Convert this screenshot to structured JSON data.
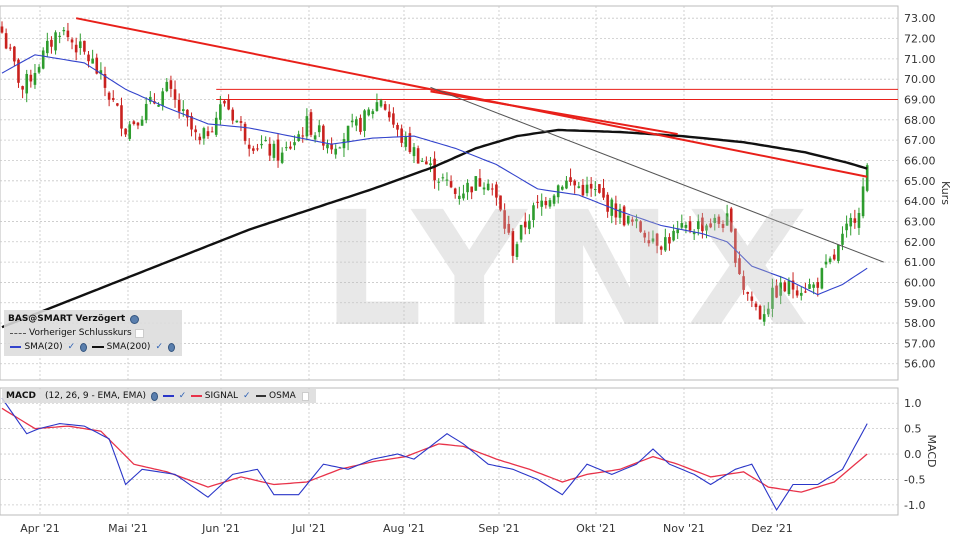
{
  "watermark": "LYNX",
  "price_legend": {
    "title": "BAS@SMART Verzögert",
    "prev_close": "Vorheriger Schlusskurs",
    "sma20": "SMA(20)",
    "sma200": "SMA(200)"
  },
  "macd_legend": {
    "title": "MACD",
    "params": "(12, 26, 9 - EMA, EMA)",
    "signal": "SIGNAL",
    "osma": "OSMA"
  },
  "colors": {
    "candle_up": "#2e9c2e",
    "candle_down": "#c9211e",
    "sma20": "#3344cc",
    "sma200": "#111111",
    "trendline": "#e8201a",
    "macd": "#2a36c8",
    "signal": "#e8334a",
    "grid": "#c8c8c8"
  },
  "chart_data": [
    {
      "type": "candlestick",
      "ylabel": "Kurs",
      "ylim": [
        55.2,
        73.6
      ],
      "yticks": [
        "73.00",
        "72.00",
        "71.00",
        "70.00",
        "69.00",
        "68.00",
        "67.00",
        "66.00",
        "65.00",
        "64.00",
        "63.00",
        "62.00",
        "61.00",
        "60.00",
        "59.00",
        "58.00",
        "57.00",
        "56.00"
      ],
      "x_months": [
        "Apr '21",
        "Mai '21",
        "Jun '21",
        "Jul '21",
        "Aug '21",
        "Sep '21",
        "Okt '21",
        "Nov '21",
        "Dez '21"
      ],
      "close_anchors": [
        [
          0,
          72.3
        ],
        [
          5,
          69.5
        ],
        [
          14,
          72.5
        ],
        [
          22,
          70.8
        ],
        [
          30,
          67.6
        ],
        [
          40,
          69.5
        ],
        [
          48,
          66.8
        ],
        [
          54,
          68.9
        ],
        [
          60,
          67.0
        ],
        [
          68,
          66.2
        ],
        [
          74,
          67.8
        ],
        [
          80,
          66.8
        ],
        [
          87,
          67.8
        ],
        [
          92,
          69.1
        ],
        [
          96,
          67.3
        ],
        [
          104,
          65.6
        ],
        [
          110,
          64.4
        ],
        [
          118,
          65.2
        ],
        [
          124,
          61.6
        ],
        [
          128,
          63.3
        ],
        [
          136,
          65.0
        ],
        [
          144,
          64.4
        ],
        [
          152,
          63.0
        ],
        [
          160,
          62.0
        ],
        [
          168,
          62.8
        ],
        [
          176,
          63.0
        ],
        [
          180,
          59.8
        ],
        [
          184,
          58.4
        ],
        [
          188,
          59.6
        ],
        [
          192,
          59.8
        ],
        [
          197,
          59.8
        ],
        [
          202,
          61.2
        ],
        [
          208,
          63.8
        ],
        [
          210,
          65.4
        ]
      ],
      "sma20_anchors": [
        [
          0,
          70.3
        ],
        [
          8,
          71.2
        ],
        [
          20,
          70.8
        ],
        [
          30,
          69.5
        ],
        [
          40,
          68.6
        ],
        [
          50,
          67.8
        ],
        [
          60,
          67.6
        ],
        [
          70,
          67.2
        ],
        [
          80,
          66.8
        ],
        [
          90,
          67.1
        ],
        [
          100,
          67.2
        ],
        [
          110,
          66.6
        ],
        [
          120,
          65.8
        ],
        [
          130,
          64.6
        ],
        [
          140,
          64.3
        ],
        [
          150,
          63.5
        ],
        [
          160,
          62.8
        ],
        [
          170,
          62.4
        ],
        [
          176,
          62.0
        ],
        [
          182,
          60.8
        ],
        [
          190,
          60.2
        ],
        [
          198,
          59.4
        ],
        [
          204,
          59.9
        ],
        [
          210,
          60.7
        ]
      ],
      "sma200_anchors": [
        [
          0,
          57.8
        ],
        [
          15,
          59.0
        ],
        [
          30,
          60.2
        ],
        [
          45,
          61.4
        ],
        [
          60,
          62.6
        ],
        [
          75,
          63.6
        ],
        [
          90,
          64.6
        ],
        [
          105,
          65.7
        ],
        [
          115,
          66.6
        ],
        [
          125,
          67.2
        ],
        [
          135,
          67.5
        ],
        [
          150,
          67.4
        ],
        [
          165,
          67.2
        ],
        [
          180,
          66.9
        ],
        [
          195,
          66.4
        ],
        [
          205,
          65.9
        ],
        [
          210,
          65.6
        ]
      ],
      "resistance_levels": [
        69.5,
        69.0
      ],
      "trendlines": [
        {
          "color": "red",
          "from": [
            18,
            73.0
          ],
          "to": [
            210,
            65.2
          ]
        },
        {
          "color": "red",
          "from": [
            104,
            69.4
          ],
          "to": [
            164,
            67.3
          ]
        },
        {
          "color": "grey",
          "from": [
            104,
            69.6
          ],
          "to": [
            214,
            61.0
          ]
        }
      ]
    },
    {
      "type": "line",
      "name": "MACD",
      "ylabel": "MACD",
      "ylim": [
        -1.2,
        1.3
      ],
      "yticks": [
        "1.0",
        "0.5",
        "0.0",
        "-0.5",
        "-1.0"
      ],
      "macd_anchors": [
        [
          0,
          1.1
        ],
        [
          6,
          0.4
        ],
        [
          9,
          0.5
        ],
        [
          14,
          0.6
        ],
        [
          20,
          0.55
        ],
        [
          26,
          0.3
        ],
        [
          30,
          -0.6
        ],
        [
          34,
          -0.3
        ],
        [
          42,
          -0.4
        ],
        [
          50,
          -0.85
        ],
        [
          56,
          -0.4
        ],
        [
          62,
          -0.3
        ],
        [
          66,
          -0.8
        ],
        [
          72,
          -0.8
        ],
        [
          78,
          -0.2
        ],
        [
          84,
          -0.3
        ],
        [
          90,
          -0.1
        ],
        [
          96,
          0.0
        ],
        [
          100,
          -0.1
        ],
        [
          108,
          0.4
        ],
        [
          112,
          0.2
        ],
        [
          118,
          -0.2
        ],
        [
          124,
          -0.3
        ],
        [
          130,
          -0.5
        ],
        [
          136,
          -0.8
        ],
        [
          142,
          -0.2
        ],
        [
          148,
          -0.4
        ],
        [
          154,
          -0.2
        ],
        [
          158,
          0.1
        ],
        [
          162,
          -0.2
        ],
        [
          168,
          -0.4
        ],
        [
          172,
          -0.6
        ],
        [
          178,
          -0.3
        ],
        [
          182,
          -0.2
        ],
        [
          188,
          -1.1
        ],
        [
          192,
          -0.6
        ],
        [
          198,
          -0.6
        ],
        [
          204,
          -0.3
        ],
        [
          210,
          0.6
        ]
      ],
      "signal_anchors": [
        [
          0,
          0.9
        ],
        [
          8,
          0.5
        ],
        [
          16,
          0.55
        ],
        [
          24,
          0.45
        ],
        [
          32,
          -0.2
        ],
        [
          40,
          -0.35
        ],
        [
          50,
          -0.65
        ],
        [
          58,
          -0.45
        ],
        [
          66,
          -0.6
        ],
        [
          74,
          -0.55
        ],
        [
          82,
          -0.3
        ],
        [
          90,
          -0.15
        ],
        [
          98,
          -0.05
        ],
        [
          106,
          0.2
        ],
        [
          112,
          0.15
        ],
        [
          120,
          -0.1
        ],
        [
          128,
          -0.3
        ],
        [
          136,
          -0.55
        ],
        [
          142,
          -0.4
        ],
        [
          150,
          -0.3
        ],
        [
          158,
          -0.05
        ],
        [
          164,
          -0.2
        ],
        [
          172,
          -0.45
        ],
        [
          180,
          -0.35
        ],
        [
          186,
          -0.65
        ],
        [
          194,
          -0.75
        ],
        [
          202,
          -0.55
        ],
        [
          210,
          0.0
        ]
      ]
    }
  ]
}
